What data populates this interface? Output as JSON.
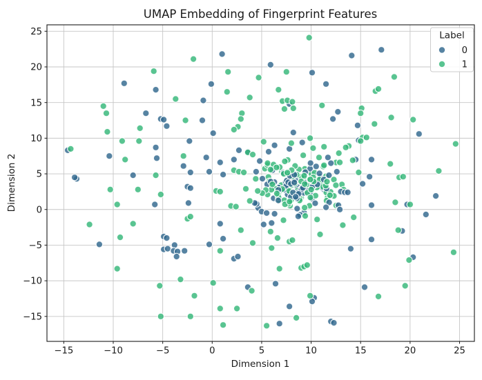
{
  "chart_data": {
    "type": "scatter",
    "title": "UMAP Embedding of Fingerprint Features",
    "xlabel": "Dimension 1",
    "ylabel": "Dimension 2",
    "xlim": [
      -16.7,
      26.5
    ],
    "ylim": [
      -18.5,
      25.9
    ],
    "grid": true,
    "grid_color": "#c6c6c6",
    "spine_color": "#1a1a1a",
    "x_ticks": [
      -15,
      -10,
      -5,
      0,
      5,
      10,
      15,
      20,
      25
    ],
    "x_tick_labels": [
      "−15",
      "−10",
      "−5",
      "0",
      "5",
      "10",
      "15",
      "20",
      "25"
    ],
    "y_ticks": [
      25,
      20,
      15,
      10,
      5,
      0,
      -5,
      -10,
      -15
    ],
    "y_tick_labels": [
      "25",
      "20",
      "15",
      "10",
      "5",
      "0",
      "−5",
      "−10",
      "−15"
    ],
    "marker": {
      "radius": 4.7,
      "fill_opacity": 0.82,
      "edge_color": "#ffffff",
      "edge_width": 1.2
    },
    "legend": {
      "title": "Label",
      "position": "upper right",
      "entries": [
        {
          "label": "0",
          "color": "#31688e"
        },
        {
          "label": "1",
          "color": "#35b779"
        }
      ]
    },
    "series": [
      {
        "name": "0",
        "color": "#31688e",
        "points": [
          [
            -8.9,
            17.7
          ],
          [
            -5.7,
            16.8
          ],
          [
            -6.7,
            13.5
          ],
          [
            -5.2,
            12.7
          ],
          [
            -4.9,
            12.6
          ],
          [
            -4.6,
            11.7
          ],
          [
            1.0,
            21.8
          ],
          [
            5.9,
            20.3
          ],
          [
            10.1,
            19.2
          ],
          [
            -0.1,
            17.6
          ],
          [
            11.5,
            17.6
          ],
          [
            -0.9,
            15.3
          ],
          [
            7.8,
            14.8
          ],
          [
            -1.0,
            12.5
          ],
          [
            12.2,
            12.7
          ],
          [
            17.1,
            22.4
          ],
          [
            14.1,
            21.6
          ],
          [
            12.7,
            13.7
          ],
          [
            14.7,
            11.8
          ],
          [
            20.9,
            10.6
          ],
          [
            14.8,
            9.7
          ],
          [
            14.5,
            7.0
          ],
          [
            16.1,
            7.0
          ],
          [
            12.6,
            5.3
          ],
          [
            15.9,
            4.6
          ],
          [
            15.2,
            3.6
          ],
          [
            13.0,
            2.5
          ],
          [
            13.4,
            2.4
          ],
          [
            13.7,
            2.4
          ],
          [
            22.6,
            1.9
          ],
          [
            19.7,
            0.7
          ],
          [
            16.1,
            0.6
          ],
          [
            12.9,
            0.0
          ],
          [
            21.6,
            -0.7
          ],
          [
            19.2,
            -3.0
          ],
          [
            8.2,
            10.8
          ],
          [
            7.8,
            8.5
          ],
          [
            11.7,
            7.3
          ],
          [
            -14.6,
            8.3
          ],
          [
            -2.3,
            9.6
          ],
          [
            -5.7,
            8.7
          ],
          [
            -10.4,
            7.5
          ],
          [
            -5.6,
            7.2
          ],
          [
            -2.9,
            6.1
          ],
          [
            -2.2,
            5.2
          ],
          [
            -13.7,
            4.3
          ],
          [
            -13.9,
            4.5
          ],
          [
            -8.0,
            4.8
          ],
          [
            -5.8,
            0.7
          ],
          [
            -2.4,
            0.9
          ],
          [
            -11.4,
            -4.9
          ],
          [
            -4.9,
            -3.8
          ],
          [
            -4.6,
            -4.0
          ],
          [
            -3.8,
            -5.0
          ],
          [
            -4.9,
            -5.6
          ],
          [
            -4.5,
            -5.5
          ],
          [
            -3.9,
            -5.8
          ],
          [
            -3.5,
            -5.9
          ],
          [
            -2.8,
            -5.8
          ],
          [
            -3.6,
            -6.6
          ],
          [
            1.1,
            -4.1
          ],
          [
            -0.3,
            -4.9
          ],
          [
            2.2,
            -6.9
          ],
          [
            2.6,
            -6.6
          ],
          [
            6.4,
            -10.4
          ],
          [
            3.6,
            -10.9
          ],
          [
            7.8,
            -13.6
          ],
          [
            10.3,
            -12.4
          ],
          [
            10.1,
            -12.9
          ],
          [
            12.0,
            -15.7
          ],
          [
            12.3,
            -15.9
          ],
          [
            6.8,
            -16.0
          ],
          [
            16.1,
            -4.2
          ],
          [
            14.0,
            -5.5
          ],
          [
            20.3,
            -6.7
          ],
          [
            15.4,
            -10.9
          ],
          [
            0.1,
            10.7
          ],
          [
            -0.6,
            7.3
          ],
          [
            0.8,
            6.6
          ],
          [
            2.2,
            7.0
          ],
          [
            2.7,
            8.3
          ],
          [
            3.6,
            8.1
          ],
          [
            5.7,
            8.1
          ],
          [
            -0.3,
            5.3
          ],
          [
            1.1,
            4.9
          ],
          [
            -2.5,
            3.2
          ],
          [
            -2.2,
            3.0
          ],
          [
            0.8,
            -2.0
          ],
          [
            5.0,
            -0.3
          ],
          [
            5.5,
            -0.5
          ],
          [
            5.2,
            -2.1
          ],
          [
            6.0,
            -1.9
          ],
          [
            6.3,
            -0.6
          ],
          [
            11.5,
            0.3
          ],
          [
            11.8,
            4.8
          ],
          [
            9.1,
            9.4
          ],
          [
            6.3,
            9.0
          ],
          [
            4.3,
            0.9
          ],
          [
            4.8,
            6.8
          ],
          [
            12.0,
            6.5
          ]
        ]
      },
      {
        "name": "1",
        "color": "#35b779",
        "points": [
          [
            -5.9,
            19.4
          ],
          [
            -3.7,
            15.5
          ],
          [
            -11.0,
            14.5
          ],
          [
            -10.7,
            13.5
          ],
          [
            -2.7,
            12.5
          ],
          [
            -7.3,
            11.4
          ],
          [
            9.8,
            24.1
          ],
          [
            -1.9,
            21.1
          ],
          [
            1.6,
            19.3
          ],
          [
            7.5,
            19.3
          ],
          [
            4.7,
            18.5
          ],
          [
            1.5,
            16.5
          ],
          [
            6.7,
            16.8
          ],
          [
            3.8,
            15.7
          ],
          [
            11.1,
            14.6
          ],
          [
            7.1,
            15.2
          ],
          [
            7.6,
            15.3
          ],
          [
            8.1,
            15.1
          ],
          [
            7.3,
            14.1
          ],
          [
            8.2,
            14.2
          ],
          [
            3.0,
            13.5
          ],
          [
            2.9,
            12.7
          ],
          [
            2.6,
            11.6
          ],
          [
            18.4,
            18.6
          ],
          [
            16.5,
            16.6
          ],
          [
            16.8,
            16.9
          ],
          [
            15.1,
            14.2
          ],
          [
            15.0,
            13.5
          ],
          [
            16.4,
            12.0
          ],
          [
            18.1,
            12.9
          ],
          [
            20.3,
            12.6
          ],
          [
            24.6,
            9.2
          ],
          [
            15.2,
            10.1
          ],
          [
            15.6,
            10.1
          ],
          [
            15.0,
            9.6
          ],
          [
            13.8,
            8.9
          ],
          [
            13.5,
            8.7
          ],
          [
            12.8,
            7.9
          ],
          [
            14.2,
            6.9
          ],
          [
            12.9,
            6.6
          ],
          [
            18.0,
            6.4
          ],
          [
            14.8,
            5.2
          ],
          [
            22.9,
            5.4
          ],
          [
            18.9,
            4.5
          ],
          [
            19.3,
            4.6
          ],
          [
            12.3,
            4.2
          ],
          [
            12.5,
            3.4
          ],
          [
            12.3,
            1.9
          ],
          [
            18.5,
            1.0
          ],
          [
            20.0,
            0.7
          ],
          [
            14.3,
            -1.1
          ],
          [
            13.2,
            -2.2
          ],
          [
            18.8,
            -2.9
          ],
          [
            9.9,
            10.0
          ],
          [
            11.3,
            8.8
          ],
          [
            9.2,
            7.6
          ],
          [
            -10.6,
            10.9
          ],
          [
            -9.1,
            9.6
          ],
          [
            -7.4,
            9.6
          ],
          [
            -14.3,
            8.5
          ],
          [
            -8.8,
            7.0
          ],
          [
            -2.9,
            7.5
          ],
          [
            -5.7,
            4.8
          ],
          [
            -10.3,
            2.8
          ],
          [
            -7.5,
            2.8
          ],
          [
            -5.2,
            2.1
          ],
          [
            -9.6,
            0.7
          ],
          [
            -2.5,
            -1.3
          ],
          [
            -2.2,
            -1.0
          ],
          [
            -12.4,
            -2.1
          ],
          [
            -8.0,
            -2.0
          ],
          [
            -9.3,
            -3.9
          ],
          [
            -9.6,
            -8.3
          ],
          [
            -5.3,
            -10.7
          ],
          [
            -3.2,
            -9.8
          ],
          [
            -2.2,
            -15.0
          ],
          [
            -5.2,
            -15.0
          ],
          [
            4.1,
            -4.7
          ],
          [
            6.0,
            -5.4
          ],
          [
            7.8,
            -4.5
          ],
          [
            8.1,
            -4.3
          ],
          [
            0.8,
            -5.8
          ],
          [
            6.8,
            -8.3
          ],
          [
            9.0,
            -8.2
          ],
          [
            9.3,
            -8.0
          ],
          [
            9.6,
            -7.8
          ],
          [
            0.1,
            -10.3
          ],
          [
            4.0,
            -11.4
          ],
          [
            -1.8,
            -12.1
          ],
          [
            0.8,
            -13.9
          ],
          [
            2.5,
            -13.9
          ],
          [
            9.9,
            -12.1
          ],
          [
            8.5,
            -15.2
          ],
          [
            5.5,
            -16.3
          ],
          [
            10.9,
            -3.5
          ],
          [
            1.1,
            -16.2
          ],
          [
            19.9,
            -7.1
          ],
          [
            24.4,
            -6.0
          ],
          [
            16.8,
            -12.2
          ],
          [
            19.5,
            -10.7
          ],
          [
            2.2,
            11.2
          ],
          [
            3.6,
            8.0
          ],
          [
            4.1,
            7.7
          ],
          [
            5.6,
            6.5
          ],
          [
            6.2,
            6.3
          ],
          [
            6.5,
            5.9
          ],
          [
            5.9,
            5.6
          ],
          [
            2.2,
            5.5
          ],
          [
            2.7,
            5.3
          ],
          [
            3.2,
            5.2
          ],
          [
            0.4,
            2.6
          ],
          [
            0.8,
            2.5
          ],
          [
            3.4,
            2.9
          ],
          [
            3.8,
            1.2
          ],
          [
            1.9,
            0.5
          ],
          [
            2.4,
            0.4
          ],
          [
            2.9,
            -2.9
          ],
          [
            5.9,
            -3.1
          ],
          [
            9.4,
            -0.9
          ],
          [
            10.6,
            -1.4
          ],
          [
            7.2,
            -1.5
          ],
          [
            11.9,
            2.0
          ],
          [
            11.3,
            6.2
          ],
          [
            10.8,
            7.3
          ],
          [
            8.0,
            9.3
          ],
          [
            5.2,
            9.5
          ],
          [
            4.4,
            4.3
          ],
          [
            4.6,
            2.6
          ],
          [
            6.6,
            -4.0
          ],
          [
            10.2,
            8.6
          ],
          [
            11.6,
            3.9
          ]
        ]
      }
    ],
    "dense_cluster": {
      "comment": "central overplotted blob, individual points not resolvable",
      "center": [
        8.6,
        3.2
      ],
      "std": [
        1.8,
        1.6
      ],
      "clamp_std": 2.6,
      "seed": 20,
      "counts": {
        "0": 72,
        "1": 98
      }
    }
  }
}
